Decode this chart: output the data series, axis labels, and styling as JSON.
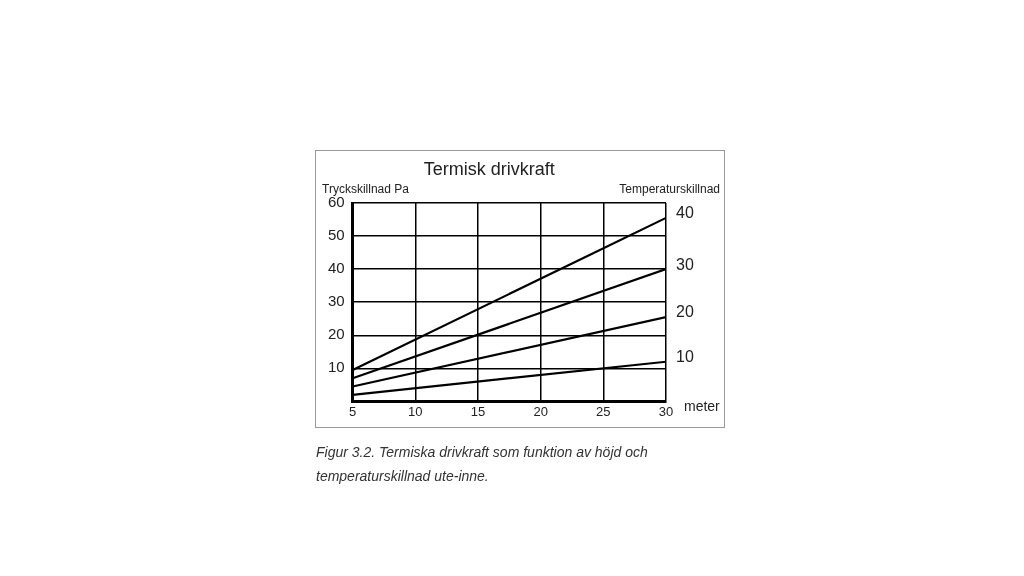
{
  "chart_data": {
    "type": "line",
    "title": "Termisk drivkraft",
    "ylabel": "Tryckskillnad Pa",
    "xlabel": "meter",
    "legend_title": "Temperaturskillnad",
    "x": [
      5,
      30
    ],
    "series": [
      {
        "name": "40",
        "color": "#000000",
        "values": [
          9.5,
          55.5
        ]
      },
      {
        "name": "30",
        "color": "#000000",
        "values": [
          7,
          40
        ]
      },
      {
        "name": "20",
        "color": "#000000",
        "values": [
          4.5,
          25.5
        ]
      },
      {
        "name": "10",
        "color": "#000000",
        "values": [
          2,
          12
        ]
      }
    ],
    "xlim": [
      5,
      30
    ],
    "xticks": [
      5,
      10,
      15,
      20,
      25,
      30
    ],
    "ylim": [
      0,
      60
    ],
    "yticks": [
      {
        "value": 0,
        "label": null
      },
      10,
      20,
      30,
      40,
      50,
      60
    ],
    "grid": true,
    "marker": "none",
    "line_style": "solid",
    "annotations": [
      "Figur 3.2. Termiska drivkraft som funktion av höjd och temperaturskillnad ute-inne."
    ]
  }
}
